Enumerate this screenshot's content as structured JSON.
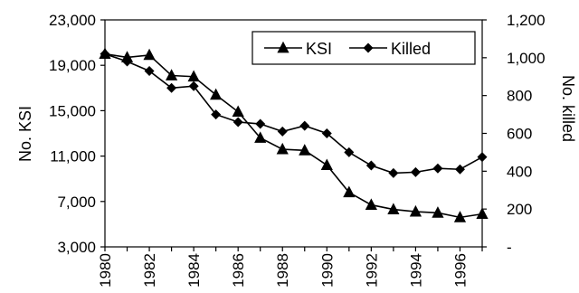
{
  "chart_data": {
    "type": "line",
    "title": "",
    "xlabel": "",
    "ylabel": "No. KSI",
    "y2label": "No. killed",
    "x": [
      1980,
      1981,
      1982,
      1983,
      1984,
      1985,
      1986,
      1987,
      1988,
      1989,
      1990,
      1991,
      1992,
      1993,
      1994,
      1995,
      1996,
      1997
    ],
    "x_tick_labels": [
      "1980",
      "1982",
      "1984",
      "1986",
      "1988",
      "1990",
      "1992",
      "1994",
      "1996"
    ],
    "ylim": [
      3000,
      23000
    ],
    "y_tick_labels": [
      "3,000",
      "7,000",
      "11,000",
      "15,000",
      "19,000",
      "23,000"
    ],
    "y2lim": [
      0,
      1200
    ],
    "y2_tick_labels": [
      "-",
      "200",
      "400",
      "600",
      "800",
      "1,000",
      "1,200"
    ],
    "grid": false,
    "legend": "top-right",
    "series": [
      {
        "name": "KSI",
        "axis": "left",
        "marker": "triangle",
        "values": [
          20000,
          19700,
          19900,
          18100,
          18000,
          16400,
          14900,
          12600,
          11600,
          11500,
          10200,
          7800,
          6700,
          6300,
          6100,
          6000,
          5600,
          5900
        ]
      },
      {
        "name": "Killed",
        "axis": "right",
        "marker": "diamond",
        "values": [
          1020,
          980,
          930,
          840,
          850,
          700,
          660,
          650,
          610,
          640,
          600,
          500,
          430,
          390,
          395,
          415,
          410,
          475
        ]
      }
    ],
    "colors": {
      "line": "#000000",
      "axis": "#000000",
      "background": "#ffffff"
    }
  }
}
